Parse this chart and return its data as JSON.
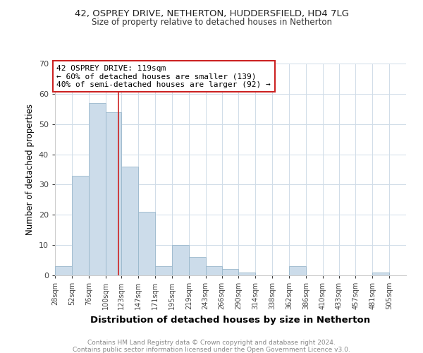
{
  "title1": "42, OSPREY DRIVE, NETHERTON, HUDDERSFIELD, HD4 7LG",
  "title2": "Size of property relative to detached houses in Netherton",
  "xlabel": "Distribution of detached houses by size in Netherton",
  "ylabel": "Number of detached properties",
  "bar_labels": [
    "28sqm",
    "52sqm",
    "76sqm",
    "100sqm",
    "123sqm",
    "147sqm",
    "171sqm",
    "195sqm",
    "219sqm",
    "243sqm",
    "266sqm",
    "290sqm",
    "314sqm",
    "338sqm",
    "362sqm",
    "386sqm",
    "410sqm",
    "433sqm",
    "457sqm",
    "481sqm",
    "505sqm"
  ],
  "bar_values": [
    3,
    33,
    57,
    54,
    36,
    21,
    3,
    10,
    6,
    3,
    2,
    1,
    0,
    0,
    3,
    0,
    0,
    0,
    0,
    1,
    0
  ],
  "bar_color": "#ccdcea",
  "bar_edgecolor": "#9ab8cc",
  "property_line_x": 119,
  "bin_edges": [
    28,
    52,
    76,
    100,
    123,
    147,
    171,
    195,
    219,
    243,
    266,
    290,
    314,
    338,
    362,
    386,
    410,
    433,
    457,
    481,
    505,
    529
  ],
  "annotation_line1": "42 OSPREY DRIVE: 119sqm",
  "annotation_line2": "← 60% of detached houses are smaller (139)",
  "annotation_line3": "40% of semi-detached houses are larger (92) →",
  "annotation_box_color": "#ffffff",
  "annotation_box_edgecolor": "#cc2222",
  "vline_color": "#cc2222",
  "ylim": [
    0,
    70
  ],
  "yticks": [
    0,
    10,
    20,
    30,
    40,
    50,
    60,
    70
  ],
  "footer1": "Contains HM Land Registry data © Crown copyright and database right 2024.",
  "footer2": "Contains public sector information licensed under the Open Government Licence v3.0."
}
